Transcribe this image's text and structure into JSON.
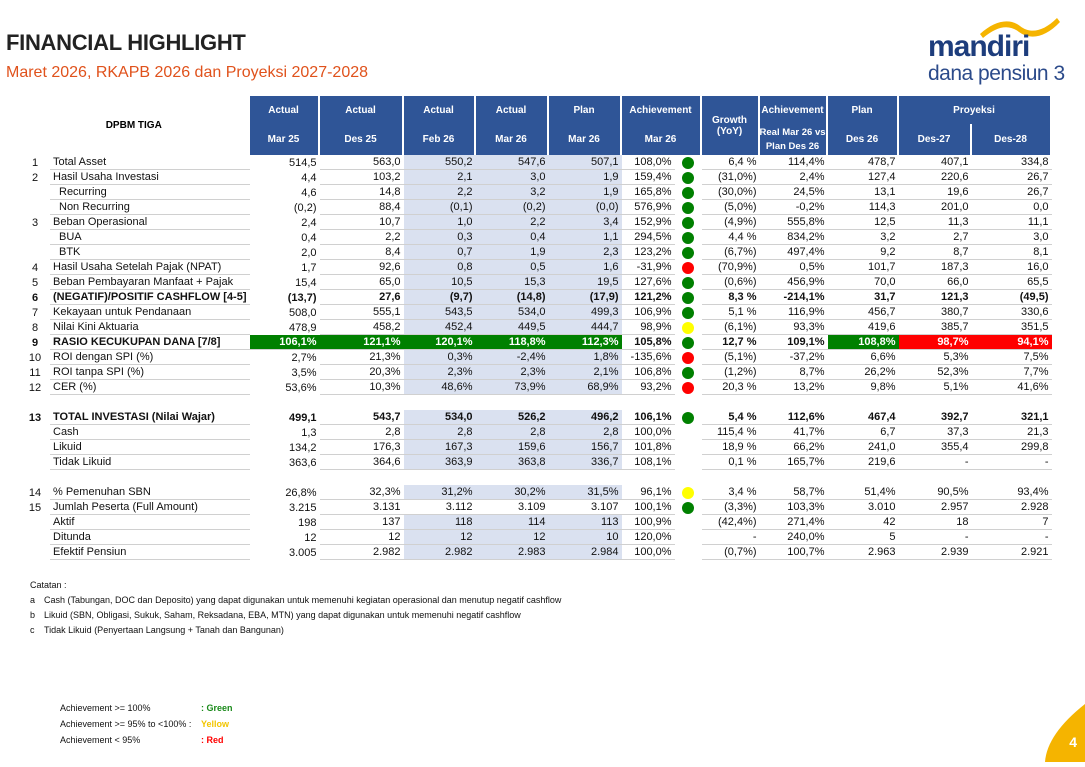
{
  "header": {
    "title": "FINANCIAL HIGHLIGHT",
    "subtitle": "Maret 2026, RKAPB 2026 dan Proyeksi 2027-2028"
  },
  "logo": {
    "brand": "mandiri",
    "sub": "dana pensiun 3"
  },
  "table": {
    "corner": "DPBM TIGA",
    "top": [
      "Actual",
      "Actual",
      "Actual",
      "Actual",
      "Plan",
      "Achievement",
      "Growth (YoY)",
      "Achievement",
      "Plan",
      "Proyeksi"
    ],
    "bottom": [
      "Mar 25",
      "Des 25",
      "Feb 26",
      "Mar 26",
      "Mar 26",
      "Mar 26",
      "Real Mar 26 vs Plan Des 26",
      "Des 26",
      "Des-27",
      "Des-28"
    ],
    "rows": [
      {
        "no": "1",
        "label": "Total Asset",
        "v": [
          "514,5",
          "563,0",
          "550,2",
          "547,6",
          "507,1",
          "108,0%",
          "6,4 %",
          "114,4%",
          "478,7",
          "407,1",
          "334,8"
        ],
        "dot": "green"
      },
      {
        "no": "2",
        "label": "Hasil Usaha Investasi",
        "v": [
          "4,4",
          "103,2",
          "2,1",
          "3,0",
          "1,9",
          "159,4%",
          "(31,0%)",
          "2,4%",
          "127,4",
          "220,6",
          "26,7"
        ],
        "dot": "green"
      },
      {
        "no": "",
        "label": "Recurring",
        "ind": true,
        "v": [
          "4,6",
          "14,8",
          "2,2",
          "3,2",
          "1,9",
          "165,8%",
          "(30,0%)",
          "24,5%",
          "13,1",
          "19,6",
          "26,7"
        ],
        "dot": "green"
      },
      {
        "no": "",
        "label": "Non Recurring",
        "ind": true,
        "v": [
          "(0,2)",
          "88,4",
          "(0,1)",
          "(0,2)",
          "(0,0)",
          "576,9%",
          "(5,0%)",
          "-0,2%",
          "114,3",
          "201,0",
          "0,0"
        ],
        "dot": "green"
      },
      {
        "no": "3",
        "label": "Beban Operasional",
        "v": [
          "2,4",
          "10,7",
          "1,0",
          "2,2",
          "3,4",
          "152,9%",
          "(4,9%)",
          "555,8%",
          "12,5",
          "11,3",
          "11,1"
        ],
        "dot": "green"
      },
      {
        "no": "",
        "label": "BUA",
        "ind": true,
        "v": [
          "0,4",
          "2,2",
          "0,3",
          "0,4",
          "1,1",
          "294,5%",
          "4,4 %",
          "834,2%",
          "3,2",
          "2,7",
          "3,0"
        ],
        "dot": "green"
      },
      {
        "no": "",
        "label": "BTK",
        "ind": true,
        "v": [
          "2,0",
          "8,4",
          "0,7",
          "1,9",
          "2,3",
          "123,2%",
          "(6,7%)",
          "497,4%",
          "9,2",
          "8,7",
          "8,1"
        ],
        "dot": "green"
      },
      {
        "no": "4",
        "label": "Hasil Usaha Setelah Pajak (NPAT)",
        "v": [
          "1,7",
          "92,6",
          "0,8",
          "0,5",
          "1,6",
          "-31,9%",
          "(70,9%)",
          "0,5%",
          "101,7",
          "187,3",
          "16,0"
        ],
        "dot": "red"
      },
      {
        "no": "5",
        "label": "Beban Pembayaran Manfaat + Pajak",
        "v": [
          "15,4",
          "65,0",
          "10,5",
          "15,3",
          "19,5",
          "127,6%",
          "(0,6%)",
          "456,9%",
          "70,0",
          "66,0",
          "65,5"
        ],
        "dot": "green"
      },
      {
        "no": "6",
        "label": "(NEGATIF)/POSITIF CASHFLOW [4-5]",
        "bold": true,
        "v": [
          "(13,7)",
          "27,6",
          "(9,7)",
          "(14,8)",
          "(17,9)",
          "121,2%",
          "8,3 %",
          "-214,1%",
          "31,7",
          "121,3",
          "(49,5)"
        ],
        "dot": "green"
      },
      {
        "no": "7",
        "label": "Kekayaan untuk Pendanaan",
        "v": [
          "508,0",
          "555,1",
          "543,5",
          "534,0",
          "499,3",
          "106,9%",
          "5,1 %",
          "116,9%",
          "456,7",
          "380,7",
          "330,6"
        ],
        "dot": "green"
      },
      {
        "no": "8",
        "label": "Nilai Kini Aktuaria",
        "v": [
          "478,9",
          "458,2",
          "452,4",
          "449,5",
          "444,7",
          "98,9%",
          "(6,1%)",
          "93,3%",
          "419,6",
          "385,7",
          "351,5"
        ],
        "dot": "yellow"
      },
      {
        "no": "9",
        "label": "RASIO KECUKUPAN DANA [7/8]",
        "bold": true,
        "rkd": true,
        "v": [
          "106,1%",
          "121,1%",
          "120,1%",
          "118,8%",
          "112,3%",
          "105,8%",
          "12,7 %",
          "109,1%",
          "108,8%",
          "98,7%",
          "94,1%"
        ],
        "dot": "green"
      },
      {
        "no": "10",
        "label": "ROI dengan SPI (%)",
        "v": [
          "2,7%",
          "21,3%",
          "0,3%",
          "-2,4%",
          "1,8%",
          "-135,6%",
          "(5,1%)",
          "-37,2%",
          "6,6%",
          "5,3%",
          "7,5%"
        ],
        "dot": "red"
      },
      {
        "no": "11",
        "label": "ROI tanpa SPI (%)",
        "v": [
          "3,5%",
          "20,3%",
          "2,3%",
          "2,3%",
          "2,1%",
          "106,8%",
          "(1,2%)",
          "8,7%",
          "26,2%",
          "52,3%",
          "7,7%"
        ],
        "dot": "green"
      },
      {
        "no": "12",
        "label": "CER (%)",
        "v": [
          "53,6%",
          "10,3%",
          "48,6%",
          "73,9%",
          "68,9%",
          "93,2%",
          "20,3 %",
          "13,2%",
          "9,8%",
          "5,1%",
          "41,6%"
        ],
        "dot": "red"
      },
      {
        "spacer": true
      },
      {
        "no": "13",
        "label": "TOTAL INVESTASI (Nilai Wajar)",
        "bold": true,
        "v": [
          "499,1",
          "543,7",
          "534,0",
          "526,2",
          "496,2",
          "106,1%",
          "5,4 %",
          "112,6%",
          "467,4",
          "392,7",
          "321,1"
        ],
        "dot": "green"
      },
      {
        "no": "",
        "label": "Cash",
        "v": [
          "1,3",
          "2,8",
          "2,8",
          "2,8",
          "2,8",
          "100,0%",
          "115,4 %",
          "41,7%",
          "6,7",
          "37,3",
          "21,3"
        ]
      },
      {
        "no": "",
        "label": "Likuid",
        "v": [
          "134,2",
          "176,3",
          "167,3",
          "159,6",
          "156,7",
          "101,8%",
          "18,9 %",
          "66,2%",
          "241,0",
          "355,4",
          "299,8"
        ]
      },
      {
        "no": "",
        "label": "Tidak Likuid",
        "v": [
          "363,6",
          "364,6",
          "363,9",
          "363,8",
          "336,7",
          "108,1%",
          "0,1 %",
          "165,7%",
          "219,6",
          "-",
          "-"
        ]
      },
      {
        "spacer": true
      },
      {
        "no": "14",
        "label": "% Pemenuhan SBN",
        "v": [
          "26,8%",
          "32,3%",
          "31,2%",
          "30,2%",
          "31,5%",
          "96,1%",
          "3,4 %",
          "58,7%",
          "51,4%",
          "90,5%",
          "93,4%"
        ],
        "dot": "yellow"
      },
      {
        "no": "15",
        "label": "Jumlah Peserta (Full Amount)",
        "noshade": true,
        "v": [
          "3.215",
          "3.131",
          "3.112",
          "3.109",
          "3.107",
          "100,1%",
          "(3,3%)",
          "103,3%",
          "3.010",
          "2.957",
          "2.928"
        ],
        "dot": "green"
      },
      {
        "no": "",
        "label": "Aktif",
        "v": [
          "198",
          "137",
          "118",
          "114",
          "113",
          "100,9%",
          "(42,4%)",
          "271,4%",
          "42",
          "18",
          "7"
        ]
      },
      {
        "no": "",
        "label": "Ditunda",
        "v": [
          "12",
          "12",
          "12",
          "12",
          "10",
          "120,0%",
          "-",
          "240,0%",
          "5",
          "-",
          "-"
        ]
      },
      {
        "no": "",
        "label": "Efektif Pensiun",
        "v": [
          "3.005",
          "2.982",
          "2.982",
          "2.983",
          "2.984",
          "100,0%",
          "(0,7%)",
          "100,7%",
          "2.963",
          "2.939",
          "2.921"
        ]
      }
    ]
  },
  "notes": {
    "title": "Catatan :",
    "items": [
      {
        "k": "a",
        "t": "Cash (Tabungan, DOC dan Deposito) yang dapat digunakan untuk memenuhi kegiatan operasional dan menutup negatif cashflow"
      },
      {
        "k": "b",
        "t": "Likuid (SBN, Obligasi, Sukuk, Saham, Reksadana, EBA, MTN) yang dapat digunakan untuk memenuhi negatif cashflow"
      },
      {
        "k": "c",
        "t": "Tidak Likuid (Penyertaan Langsung + Tanah dan Bangunan)"
      }
    ]
  },
  "legend": [
    {
      "label": "Achievement >= 100%",
      "value": ": Green",
      "color": "#1a8a1a"
    },
    {
      "label": "Achievement >= 95% to <100% :",
      "value": "Yellow",
      "color": "#f2c500"
    },
    {
      "label": "Achievement < 95%",
      "value": ": Red",
      "color": "#ff0000"
    }
  ],
  "colors": {
    "green": "#008000",
    "yellow": "#ffff00",
    "red": "#ff0000",
    "header": "#2f5597",
    "shade": "#dae1f0"
  },
  "page": {
    "number": "4"
  }
}
